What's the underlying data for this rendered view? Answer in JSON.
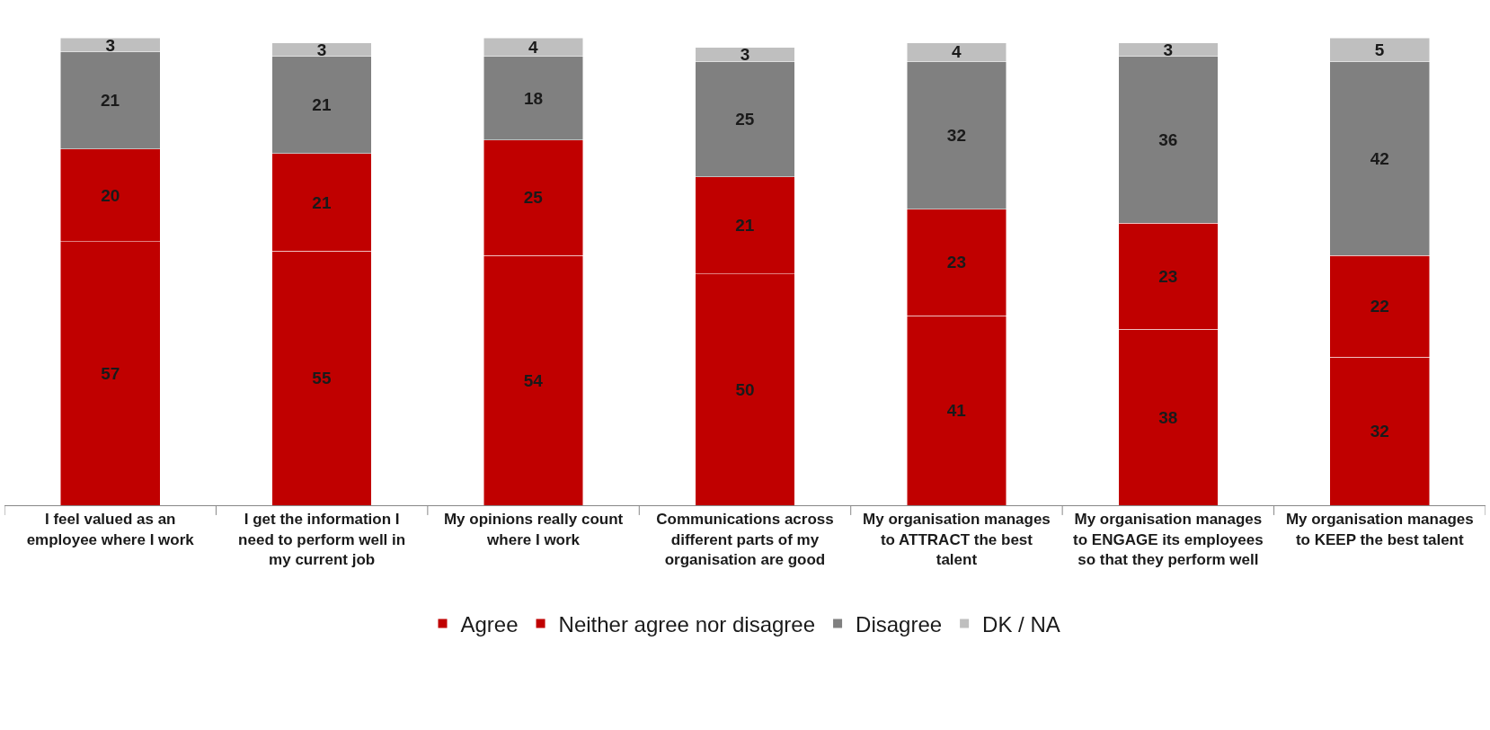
{
  "chart_data": {
    "type": "bar",
    "stacked": true,
    "data_labels": true,
    "legend": "bottom",
    "categories": [
      "I feel valued as an employee where I work",
      "I get the information I need to perform well in my current job",
      "My opinions really count where I work",
      "Communications across different parts of my organisation are good",
      "My organisation manages to ATTRACT the best talent",
      "My organisation manages to ENGAGE its employees so that they perform well",
      "My organisation manages to KEEP the best talent"
    ],
    "series": [
      {
        "name": "Agree",
        "color": "#c00000",
        "values": [
          57,
          55,
          54,
          50,
          41,
          38,
          32
        ]
      },
      {
        "name": "Neither agree nor disagree",
        "color": "#c00000",
        "values": [
          20,
          21,
          25,
          21,
          23,
          23,
          22
        ]
      },
      {
        "name": "Disagree",
        "color": "#808080",
        "values": [
          21,
          21,
          18,
          25,
          32,
          36,
          42
        ]
      },
      {
        "name": "DK / NA",
        "color": "#bfbfbf",
        "values": [
          3,
          3,
          4,
          3,
          4,
          3,
          5
        ]
      }
    ]
  }
}
